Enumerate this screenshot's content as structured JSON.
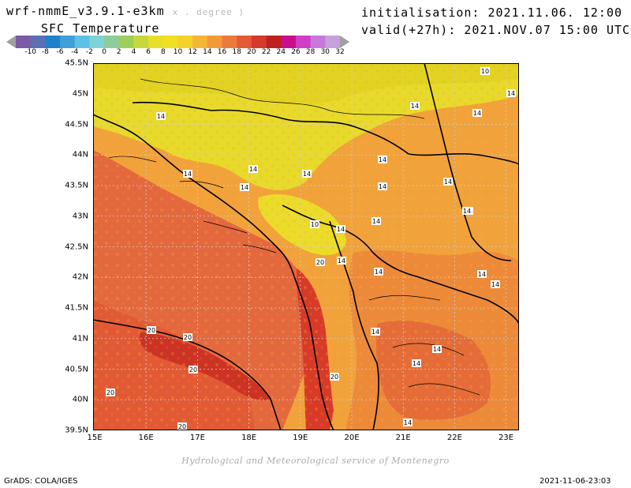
{
  "header": {
    "model": "wrf-nmmE_v3.9.1-e3km",
    "model_sub": "x . degree )",
    "field": "SFC Temperature",
    "init_label": "initialisation:",
    "init_value": "2021.11.06. 12:00 UTC",
    "valid_label": "valid(+27h):",
    "valid_value": "2021.NOV.07 15:00 UTC"
  },
  "colorbar": {
    "labels": [
      "-10",
      "-8",
      "-6",
      "-4",
      "-2",
      "0",
      "2",
      "4",
      "6",
      "8",
      "10",
      "12",
      "14",
      "16",
      "18",
      "20",
      "22",
      "24",
      "26",
      "28",
      "30",
      "32"
    ],
    "colors": [
      "#a0a0a0",
      "#7b5aa6",
      "#5a6fb5",
      "#1e82c8",
      "#3fa0d8",
      "#5fc0e6",
      "#7dd3d8",
      "#8ccd9a",
      "#9ecf5a",
      "#c8d83a",
      "#e6e02a",
      "#f0e020",
      "#f5d228",
      "#f5b535",
      "#f29a3a",
      "#ec7a3c",
      "#e45a35",
      "#d53a2a",
      "#c02020",
      "#c8108c",
      "#d23cc8",
      "#c878dc",
      "#c8a0dc",
      "#a0a0a0"
    ]
  },
  "axes": {
    "lat_labels": [
      "45.5N",
      "45N",
      "44.5N",
      "44N",
      "43.5N",
      "43N",
      "42.5N",
      "42N",
      "41.5N",
      "41N",
      "40.5N",
      "40N",
      "39.5N"
    ],
    "lon_labels": [
      "15E",
      "16E",
      "17E",
      "18E",
      "19E",
      "20E",
      "21E",
      "22E",
      "23E"
    ]
  },
  "contour_labels": [
    "10",
    "14",
    "14",
    "14",
    "14",
    "14",
    "14",
    "14",
    "14",
    "14",
    "14",
    "14",
    "14",
    "14",
    "10",
    "14",
    "20",
    "14",
    "14",
    "14",
    "14",
    "14",
    "14",
    "14",
    "20",
    "20",
    "20",
    "20",
    "20",
    "20",
    "14",
    "14"
  ],
  "footer": {
    "credit": "Hydrological and Meteorological service of Montenegro",
    "grads": "GrADS: COLA/IGES",
    "timestamp": "2021-11-06-23:03"
  }
}
